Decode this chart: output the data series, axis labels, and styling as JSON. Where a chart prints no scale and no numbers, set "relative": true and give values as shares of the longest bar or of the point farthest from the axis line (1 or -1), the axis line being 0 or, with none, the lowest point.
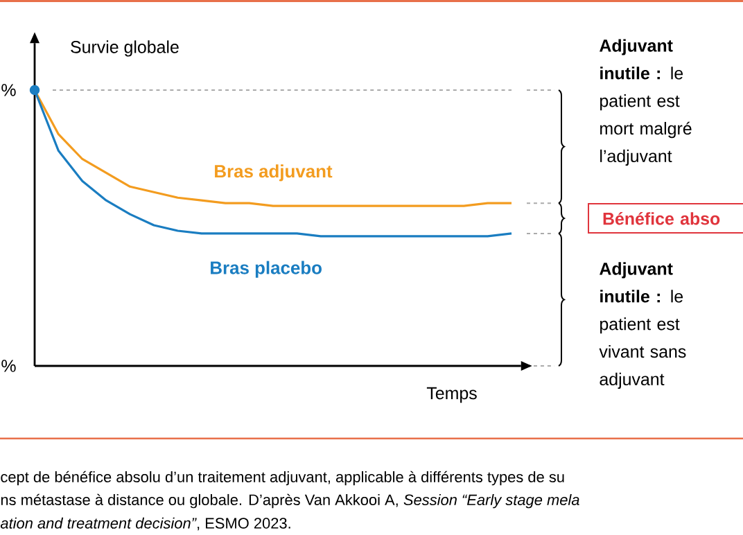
{
  "chart_data": {
    "type": "line",
    "relative": true,
    "ylabel": "Survie globale",
    "xlabel": "Temps",
    "categories": [
      null,
      null,
      null,
      null,
      null,
      null,
      null,
      null,
      null,
      null,
      null,
      null,
      null,
      null,
      null,
      null,
      null,
      null,
      null,
      null,
      null
    ],
    "series": [
      {
        "name": "Bras adjuvant",
        "color": "#f39c1f",
        "values": [
          1.0,
          0.84,
          0.75,
          0.7,
          0.65,
          0.63,
          0.61,
          0.6,
          0.59,
          0.59,
          0.58,
          0.58,
          0.58,
          0.58,
          0.58,
          0.58,
          0.58,
          0.58,
          0.58,
          0.59,
          0.59
        ]
      },
      {
        "name": "Bras placebo",
        "color": "#1a7dc1",
        "values": [
          1.0,
          0.78,
          0.67,
          0.6,
          0.55,
          0.51,
          0.49,
          0.48,
          0.48,
          0.48,
          0.48,
          0.48,
          0.47,
          0.47,
          0.47,
          0.47,
          0.47,
          0.47,
          0.47,
          0.47,
          0.48
        ]
      }
    ],
    "ref_lines": [
      {
        "axis": "y",
        "value": 1.0,
        "color": "#aaaaaa",
        "line_style": "dashed"
      }
    ],
    "annotations": [
      "%",
      "%",
      "**Adjuvant inutile :** le patient est mort malgré l’adjuvant",
      "Bénéfice abso",
      "**Adjuvant inutile :** le patient est vivant sans adjuvant",
      "cept de bénéfice absolu d’un traitement adjuvant, applicable à différents types de su",
      "ns métastase à distance ou globale. D’après Van Akkooi A, *Session “Early stage mela*",
      "*ation and treatment decision”*, ESMO 2023."
    ]
  }
}
